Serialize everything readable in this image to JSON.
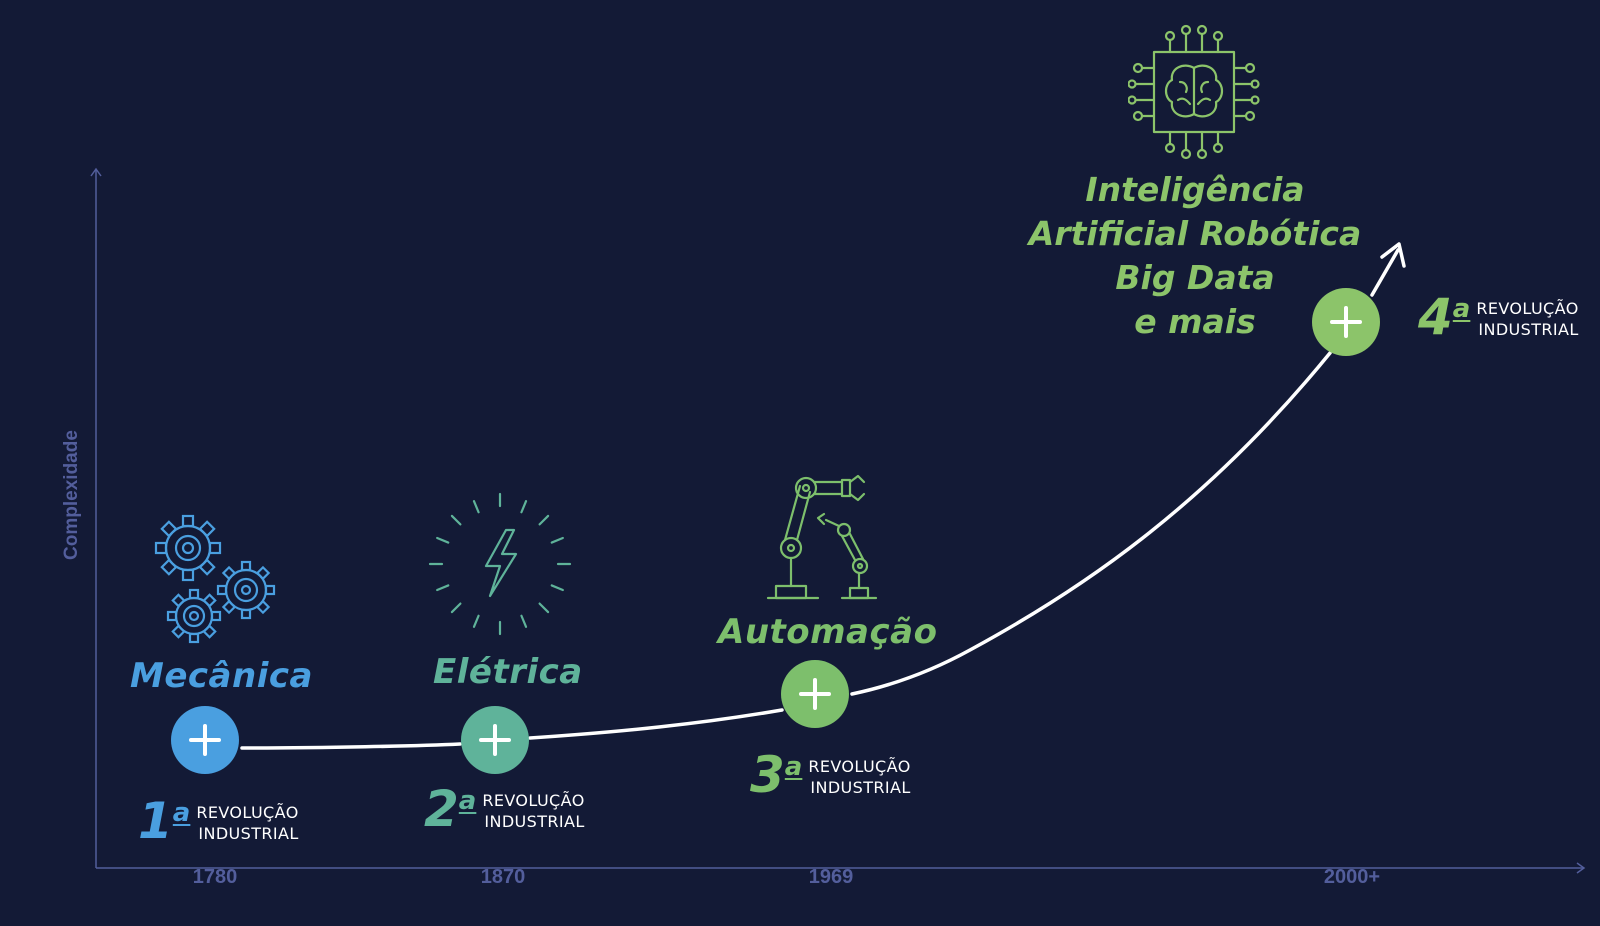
{
  "axes": {
    "ylabel": "Complexidade",
    "years": [
      "1780",
      "1870",
      "1969",
      "2000+"
    ]
  },
  "revolutions": [
    {
      "title": "Mecânica",
      "num": "1",
      "sup": "a",
      "line1": "REVOLUÇÃO",
      "line2": "INDUSTRIAL",
      "icon": "gears-icon",
      "color": "#4a9fe0"
    },
    {
      "title": "Elétrica",
      "num": "2",
      "sup": "a",
      "line1": "REVOLUÇÃO",
      "line2": "INDUSTRIAL",
      "icon": "lightning-icon",
      "color": "#5fb39a"
    },
    {
      "title": "Automação",
      "num": "3",
      "sup": "a",
      "line1": "REVOLUÇÃO",
      "line2": "INDUSTRIAL",
      "icon": "robotic-arm-icon",
      "color": "#7dbf6c"
    },
    {
      "title_lines": [
        "Inteligência",
        "Artificial Robótica",
        "Big Data",
        "e mais"
      ],
      "num": "4",
      "sup": "a",
      "line1": "REVOLUÇÃO",
      "line2": "INDUSTRIAL",
      "icon": "ai-chip-brain-icon",
      "color": "#8cc46a"
    }
  ],
  "colors": {
    "background": "#131a36",
    "axis": "#535e9c",
    "curve": "#ffffff"
  }
}
